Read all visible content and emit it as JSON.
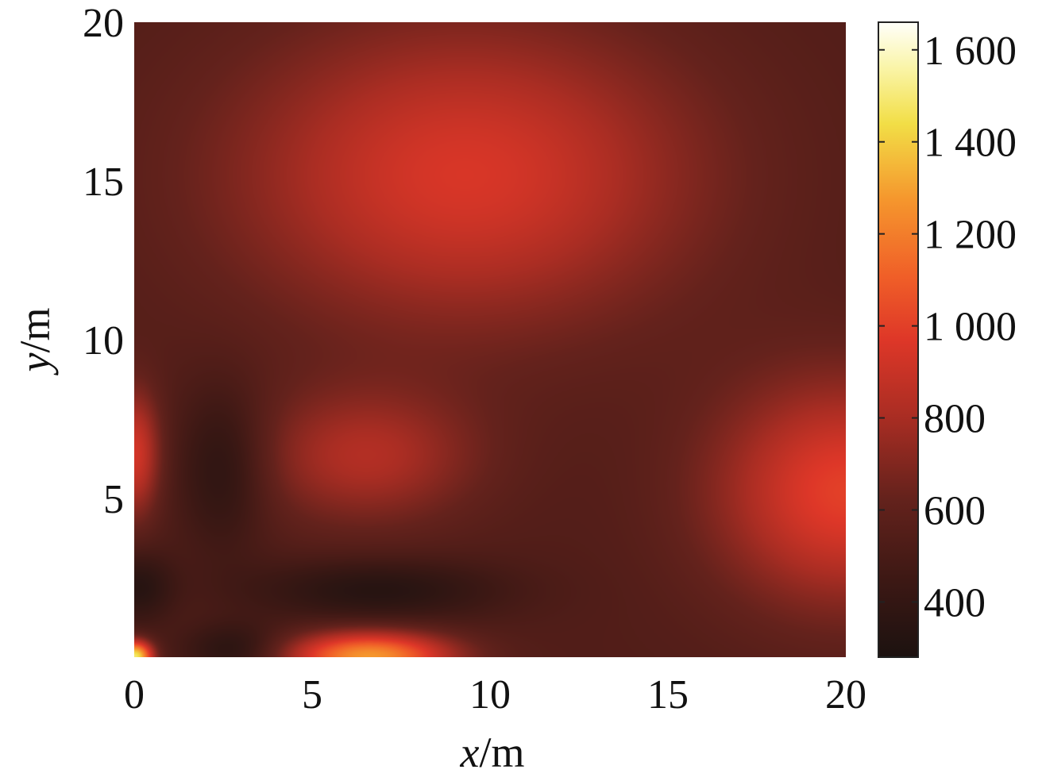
{
  "chart_data": {
    "type": "heatmap",
    "title": "",
    "xlabel_var": "x",
    "xlabel_unit": "/m",
    "ylabel_var": "y",
    "ylabel_unit": "/m",
    "xlim": [
      0,
      20
    ],
    "ylim": [
      0,
      20
    ],
    "xticks": [
      "0",
      "5",
      "10",
      "15",
      "20"
    ],
    "yticks": [
      "5",
      "10",
      "15",
      "20"
    ],
    "colorbar": {
      "range": [
        280,
        1660
      ],
      "ticks": [
        "400",
        "600",
        "800",
        "1 000",
        "1 200",
        "1 400",
        "1 600"
      ],
      "colormap": "hot-dark"
    },
    "background_value": 540,
    "hotspots": [
      {
        "x": 9.3,
        "y": 15.2,
        "peak": 950,
        "sx": 4.6,
        "sy": 3.4
      },
      {
        "x": 6.5,
        "y": 6.3,
        "peak": 820,
        "sx": 2.2,
        "sy": 1.5
      },
      {
        "x": 20.0,
        "y": 5.2,
        "peak": 1000,
        "sx": 2.6,
        "sy": 2.5
      },
      {
        "x": 0.0,
        "y": 6.4,
        "peak": 930,
        "sx": 0.5,
        "sy": 1.4
      },
      {
        "x": 6.6,
        "y": 0.0,
        "peak": 1280,
        "sx": 1.6,
        "sy": 0.55
      },
      {
        "x": 0.0,
        "y": 0.0,
        "peak": 1500,
        "sx": 0.35,
        "sy": 0.35
      }
    ],
    "coldspots": [
      {
        "x": 2.5,
        "y": 6.0,
        "value": 340,
        "sx": 0.9,
        "sy": 1.8
      },
      {
        "x": 6.8,
        "y": 2.1,
        "value": 330,
        "sx": 2.5,
        "sy": 0.7
      },
      {
        "x": 0.1,
        "y": 2.2,
        "value": 340,
        "sx": 0.7,
        "sy": 0.8
      },
      {
        "x": 2.8,
        "y": 0.2,
        "value": 340,
        "sx": 1.0,
        "sy": 0.6
      }
    ]
  }
}
